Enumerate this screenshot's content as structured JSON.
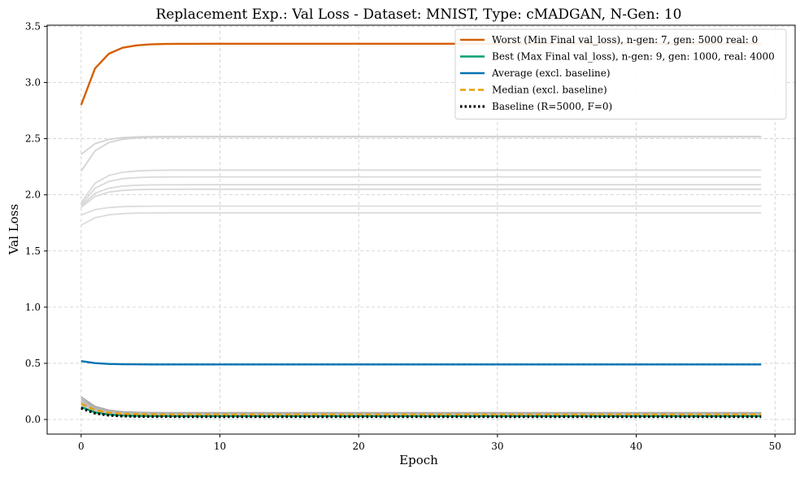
{
  "chart_data": {
    "type": "line",
    "title": "Replacement Exp.: Val Loss - Dataset: MNIST, Type: cMADGAN, N-Gen: 10",
    "xlabel": "Epoch",
    "ylabel": "Val Loss",
    "xlim": [
      -2.45,
      51.45
    ],
    "ylim": [
      -0.13,
      3.51
    ],
    "xticks": [
      0,
      10,
      20,
      30,
      40,
      50
    ],
    "xtick_labels": [
      "0",
      "10",
      "20",
      "30",
      "40",
      "50"
    ],
    "yticks": [
      0.0,
      0.5,
      1.0,
      1.5,
      2.0,
      2.5,
      3.0,
      3.5
    ],
    "ytick_labels": [
      "0.0",
      "0.5",
      "1.0",
      "1.5",
      "2.0",
      "2.5",
      "3.0",
      "3.5"
    ],
    "grid": true,
    "legend_position": "top-right",
    "epochs": 50,
    "background_series": [
      {
        "start": 2.36,
        "plateau": 2.52,
        "color": "#d3d3d3"
      },
      {
        "start": 2.21,
        "plateau": 2.515,
        "color": "#d3d3d3"
      },
      {
        "start": 1.93,
        "plateau": 2.22,
        "color": "#d9d9d9"
      },
      {
        "start": 1.91,
        "plateau": 2.16,
        "color": "#d9d9d9"
      },
      {
        "start": 1.9,
        "plateau": 2.09,
        "color": "#d9d9d9"
      },
      {
        "start": 1.89,
        "plateau": 2.05,
        "color": "#d9d9d9"
      },
      {
        "start": 1.82,
        "plateau": 1.9,
        "color": "#dcdcdc"
      },
      {
        "start": 1.73,
        "plateau": 1.84,
        "color": "#dcdcdc"
      },
      {
        "start": 0.2,
        "plateau": 0.06,
        "color": "#a9a9a9"
      },
      {
        "start": 0.18,
        "plateau": 0.055,
        "color": "#b0b0b0"
      },
      {
        "start": 0.16,
        "plateau": 0.05,
        "color": "#b8b8b8"
      },
      {
        "start": 0.14,
        "plateau": 0.045,
        "color": "#c0c0c0"
      },
      {
        "start": 0.12,
        "plateau": 0.04,
        "color": "#c4c4c4"
      }
    ],
    "series": [
      {
        "name": "Worst (Min Final val_loss), n-gen: 7, gen: 5000 real: 0",
        "color": "#d55e00",
        "style": "solid",
        "start": 2.8,
        "plateau": 3.345
      },
      {
        "name": "Best (Max Final val_loss), n-gen: 9, gen: 1000, real: 4000",
        "color": "#009e73",
        "style": "solid",
        "start": 0.11,
        "plateau": 0.03
      },
      {
        "name": "Average (excl. baseline)",
        "color": "#0072b2",
        "style": "solid",
        "start": 0.52,
        "plateau": 0.49
      },
      {
        "name": "Median (excl. baseline)",
        "color": "#e69f00",
        "style": "dashed",
        "start": 0.14,
        "plateau": 0.045
      },
      {
        "name": "Baseline (R=5000, F=0)",
        "color": "#000000",
        "style": "dotted",
        "start": 0.1,
        "plateau": 0.025
      }
    ]
  }
}
